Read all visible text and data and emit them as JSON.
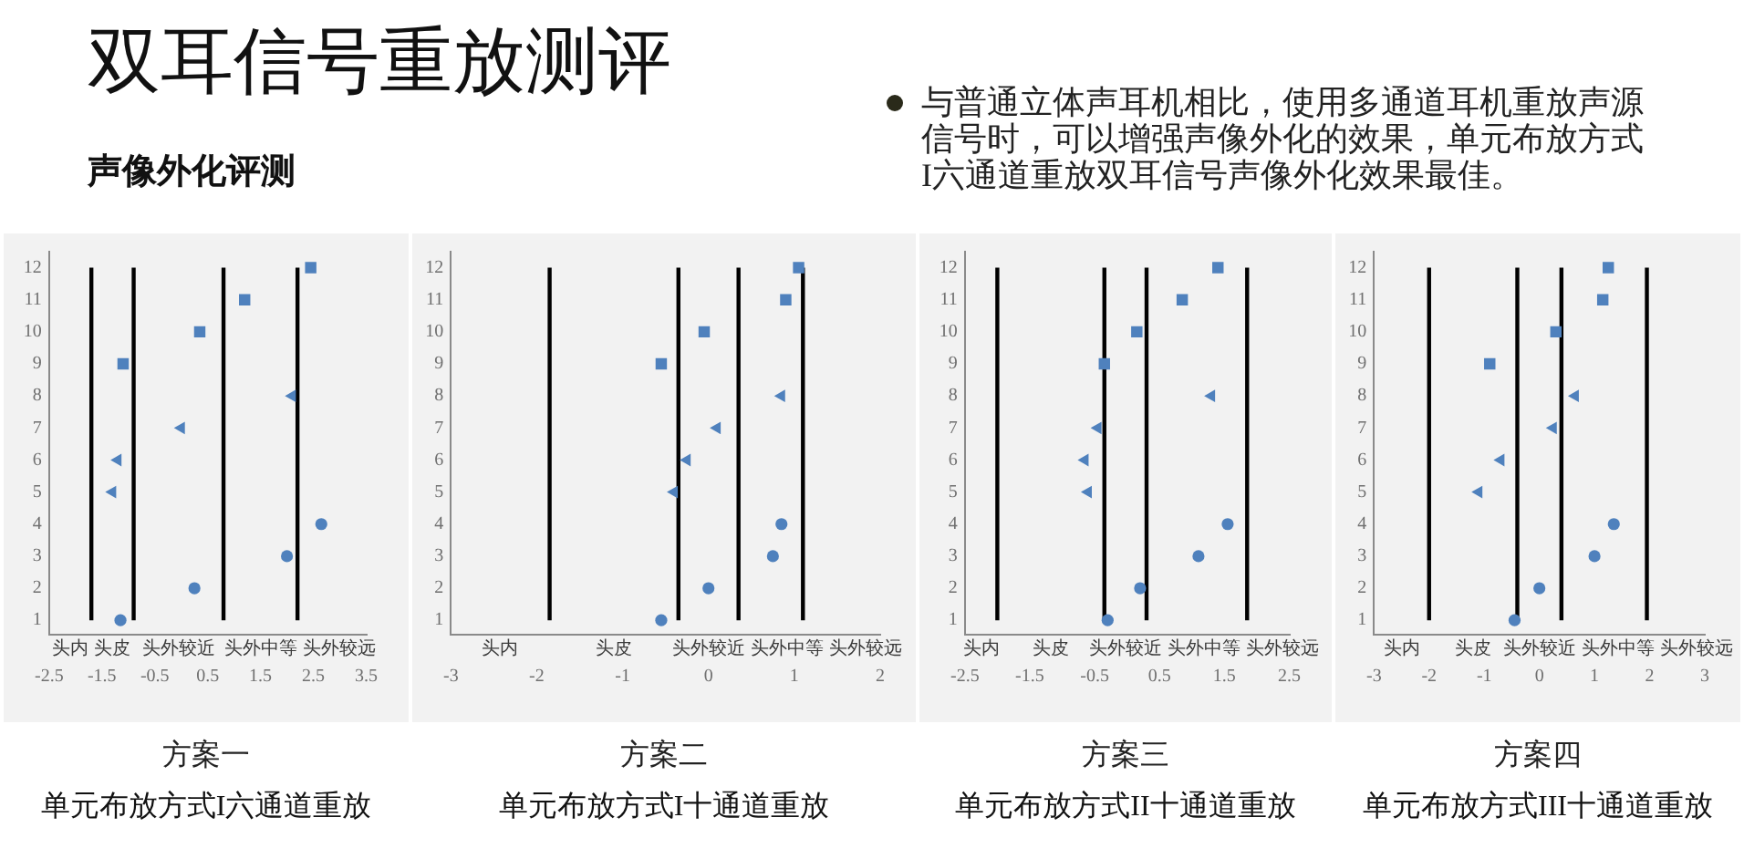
{
  "chart_data": [
    {
      "type": "other",
      "title": "双耳信号重放测评",
      "subtitle": "声像外化评测",
      "annotations": [
        "与普通立体声耳机相比，使用多通道耳机重放声源信号时，可以增强声像外化的效果，单元布放方式I六通道重放双耳信号声像外化效果最佳。"
      ]
    },
    {
      "type": "scatter",
      "title": "方案一",
      "subtitle": "单元布放方式I六通道重放",
      "xlim": [
        -2.5,
        3.5
      ],
      "xticks": [
        -2.5,
        -1.5,
        -0.5,
        0.5,
        1.5,
        2.5,
        3.5
      ],
      "ylim": [
        0.55,
        12.5
      ],
      "yticks": [
        1,
        2,
        3,
        4,
        5,
        6,
        7,
        8,
        9,
        10,
        11,
        12
      ],
      "series": [
        {
          "marker": "circle",
          "color": "#4f81bd",
          "x": [
            -1.15,
            0.25,
            2.0,
            2.65
          ],
          "values": [
            1,
            2,
            3,
            4
          ]
        },
        {
          "marker": "triangle",
          "color": "#4f81bd",
          "x": [
            -1.3,
            -1.2,
            0.0,
            2.1
          ],
          "values": [
            5,
            6,
            7,
            8
          ]
        },
        {
          "marker": "square",
          "color": "#4f81bd",
          "x": [
            -1.1,
            0.35,
            1.2,
            2.45
          ],
          "values": [
            9,
            10,
            11,
            12
          ]
        }
      ],
      "ref_lines": [
        {
          "axis": "x",
          "value": -1.7,
          "color": "#000000"
        },
        {
          "axis": "x",
          "value": -0.9,
          "color": "#000000"
        },
        {
          "axis": "x",
          "value": 0.8,
          "color": "#000000"
        },
        {
          "axis": "x",
          "value": 2.2,
          "color": "#000000"
        }
      ],
      "annotations": [
        "头内",
        "头皮",
        "头外较近",
        "头外中等",
        "头外较远"
      ]
    },
    {
      "type": "scatter",
      "title": "方案二",
      "subtitle": "单元布放方式I十通道重放",
      "xlim": [
        -3,
        2
      ],
      "xticks": [
        -3,
        -2,
        -1,
        0,
        1,
        2
      ],
      "ylim": [
        0.55,
        12.5
      ],
      "yticks": [
        1,
        2,
        3,
        4,
        5,
        6,
        7,
        8,
        9,
        10,
        11,
        12
      ],
      "series": [
        {
          "marker": "circle",
          "color": "#4f81bd",
          "x": [
            -0.55,
            0.0,
            0.75,
            0.85
          ],
          "values": [
            1,
            2,
            3,
            4
          ]
        },
        {
          "marker": "triangle",
          "color": "#4f81bd",
          "x": [
            -0.4,
            -0.25,
            0.1,
            0.85
          ],
          "values": [
            5,
            6,
            7,
            8
          ]
        },
        {
          "marker": "square",
          "color": "#4f81bd",
          "x": [
            -0.55,
            -0.05,
            0.9,
            1.05
          ],
          "values": [
            9,
            10,
            11,
            12
          ]
        }
      ],
      "ref_lines": [
        {
          "axis": "x",
          "value": -1.85,
          "color": "#000000"
        },
        {
          "axis": "x",
          "value": -0.35,
          "color": "#000000"
        },
        {
          "axis": "x",
          "value": 0.35,
          "color": "#000000"
        },
        {
          "axis": "x",
          "value": 1.1,
          "color": "#000000"
        }
      ],
      "annotations": [
        "头内",
        "头皮",
        "头外较近",
        "头外中等",
        "头外较远"
      ]
    },
    {
      "type": "scatter",
      "title": "方案三",
      "subtitle": "单元布放方式II十通道重放",
      "xlim": [
        -2.5,
        2.5
      ],
      "xticks": [
        -2.5,
        -1.5,
        -0.5,
        0.5,
        1.5,
        2.5
      ],
      "ylim": [
        0.55,
        12.5
      ],
      "yticks": [
        1,
        2,
        3,
        4,
        5,
        6,
        7,
        8,
        9,
        10,
        11,
        12
      ],
      "series": [
        {
          "marker": "circle",
          "color": "#4f81bd",
          "x": [
            -0.3,
            0.2,
            1.1,
            1.55
          ],
          "values": [
            1,
            2,
            3,
            4
          ]
        },
        {
          "marker": "triangle",
          "color": "#4f81bd",
          "x": [
            -0.6,
            -0.65,
            -0.45,
            1.3
          ],
          "values": [
            5,
            6,
            7,
            8
          ]
        },
        {
          "marker": "square",
          "color": "#4f81bd",
          "x": [
            -0.35,
            0.15,
            0.85,
            1.4
          ],
          "values": [
            9,
            10,
            11,
            12
          ]
        }
      ],
      "ref_lines": [
        {
          "axis": "x",
          "value": -2.0,
          "color": "#000000"
        },
        {
          "axis": "x",
          "value": -0.35,
          "color": "#000000"
        },
        {
          "axis": "x",
          "value": 0.3,
          "color": "#000000"
        },
        {
          "axis": "x",
          "value": 1.85,
          "color": "#000000"
        }
      ],
      "annotations": [
        "头内",
        "头皮",
        "头外较近",
        "头外中等",
        "头外较远"
      ]
    },
    {
      "type": "scatter",
      "title": "方案四",
      "subtitle": "单元布放方式III十通道重放",
      "xlim": [
        -3,
        3
      ],
      "xticks": [
        -3,
        -2,
        -1,
        0,
        1,
        2,
        3
      ],
      "ylim": [
        0.55,
        12.5
      ],
      "yticks": [
        1,
        2,
        3,
        4,
        5,
        6,
        7,
        8,
        9,
        10,
        11,
        12
      ],
      "series": [
        {
          "marker": "circle",
          "color": "#4f81bd",
          "x": [
            -0.45,
            0.0,
            1.0,
            1.35
          ],
          "values": [
            1,
            2,
            3,
            4
          ]
        },
        {
          "marker": "triangle",
          "color": "#4f81bd",
          "x": [
            -1.1,
            -0.7,
            0.25,
            0.65
          ],
          "values": [
            5,
            6,
            7,
            8
          ]
        },
        {
          "marker": "square",
          "color": "#4f81bd",
          "x": [
            -0.9,
            0.3,
            1.15,
            1.25
          ],
          "values": [
            9,
            10,
            11,
            12
          ]
        }
      ],
      "ref_lines": [
        {
          "axis": "x",
          "value": -2.0,
          "color": "#000000"
        },
        {
          "axis": "x",
          "value": -0.4,
          "color": "#000000"
        },
        {
          "axis": "x",
          "value": 0.4,
          "color": "#000000"
        },
        {
          "axis": "x",
          "value": 1.95,
          "color": "#000000"
        }
      ],
      "annotations": [
        "头内",
        "头皮",
        "头外较近",
        "头外中等",
        "头外较远"
      ]
    }
  ]
}
